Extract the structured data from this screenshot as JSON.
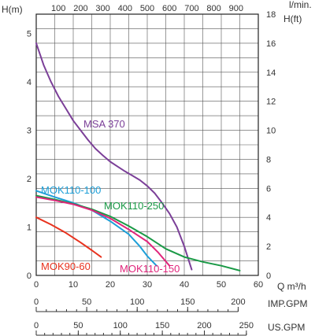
{
  "chart_data": {
    "type": "line",
    "left_axis_title": "H(m)",
    "right_axis_title_top": "l/min.",
    "right_axis_title_sub": "H(ft)",
    "x_axis_title": "Q m³/h",
    "bottom_axis_1_title": "IMP.GPM",
    "bottom_axis_2_title": "US.GPM",
    "xlim": [
      0,
      60
    ],
    "ylim_m": [
      0,
      5.4
    ],
    "ylim_ft": [
      0,
      18
    ],
    "x_ticks": [
      "0",
      "10",
      "20",
      "30",
      "40",
      "50",
      "60"
    ],
    "top_ticks": [
      "100",
      "200",
      "300",
      "400",
      "500",
      "600",
      "700",
      "800",
      "900"
    ],
    "left_ticks": [
      "0",
      "1",
      "2",
      "3",
      "4",
      "5"
    ],
    "right_ticks": [
      "0",
      "2",
      "4",
      "6",
      "8",
      "10",
      "12",
      "14",
      "16",
      "18"
    ],
    "imp_ticks": [
      "0",
      "50",
      "100",
      "150",
      "200"
    ],
    "us_ticks": [
      "0",
      "50",
      "100",
      "150",
      "200",
      "250"
    ],
    "grid": true,
    "series": [
      {
        "name": "MSA 370",
        "color": "#7b3f98",
        "points": [
          [
            0,
            4.8
          ],
          [
            2,
            4.35
          ],
          [
            4,
            4.0
          ],
          [
            6,
            3.7
          ],
          [
            8,
            3.45
          ],
          [
            10,
            3.2
          ],
          [
            12,
            3.0
          ],
          [
            14,
            2.8
          ],
          [
            16,
            2.62
          ],
          [
            18,
            2.48
          ],
          [
            20,
            2.35
          ],
          [
            22,
            2.25
          ],
          [
            24,
            2.15
          ],
          [
            26,
            2.06
          ],
          [
            28,
            1.97
          ],
          [
            30,
            1.85
          ],
          [
            32,
            1.7
          ],
          [
            34,
            1.5
          ],
          [
            36,
            1.28
          ],
          [
            38,
            1.0
          ],
          [
            40,
            0.6
          ],
          [
            42,
            0.12
          ]
        ]
      },
      {
        "name": "MOK110-100",
        "color": "#1e9fd8",
        "points": [
          [
            0,
            1.75
          ],
          [
            5,
            1.62
          ],
          [
            10,
            1.5
          ],
          [
            15,
            1.35
          ],
          [
            20,
            1.12
          ],
          [
            25,
            0.85
          ],
          [
            28,
            0.6
          ],
          [
            30,
            0.4
          ],
          [
            32.5,
            0.2
          ]
        ]
      },
      {
        "name": "MOK110-250",
        "color": "#1a9946",
        "points": [
          [
            0,
            1.65
          ],
          [
            5,
            1.57
          ],
          [
            10,
            1.48
          ],
          [
            15,
            1.37
          ],
          [
            20,
            1.22
          ],
          [
            25,
            1.02
          ],
          [
            30,
            0.8
          ],
          [
            35,
            0.55
          ],
          [
            40,
            0.38
          ],
          [
            45,
            0.28
          ],
          [
            50,
            0.2
          ],
          [
            55,
            0.1
          ]
        ]
      },
      {
        "name": "MOK110-150",
        "color": "#e0257b",
        "points": [
          [
            0,
            1.62
          ],
          [
            5,
            1.55
          ],
          [
            10,
            1.47
          ],
          [
            15,
            1.35
          ],
          [
            20,
            1.18
          ],
          [
            25,
            0.95
          ],
          [
            30,
            0.7
          ],
          [
            33,
            0.47
          ],
          [
            36,
            0.2
          ]
        ]
      },
      {
        "name": "MOK90-60",
        "color": "#e8321e",
        "points": [
          [
            0,
            1.2
          ],
          [
            4,
            1.05
          ],
          [
            8,
            0.88
          ],
          [
            12,
            0.68
          ],
          [
            15,
            0.52
          ],
          [
            17.5,
            0.38
          ]
        ]
      }
    ]
  }
}
